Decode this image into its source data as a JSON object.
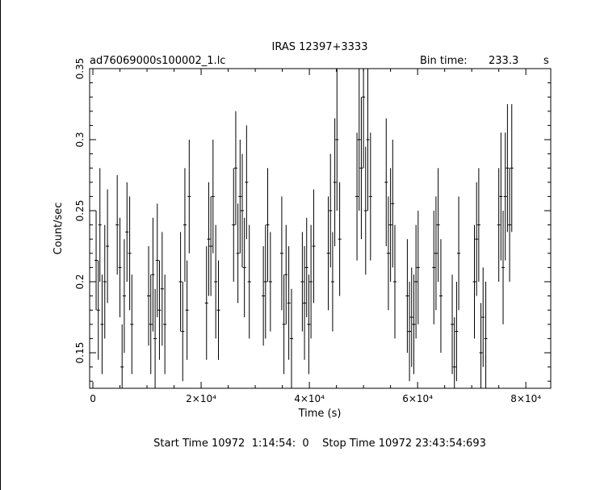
{
  "chart_data": {
    "type": "scatter",
    "style": "error-bars",
    "title": "IRAS 12397+3333",
    "file_label": "ad76069000s100002_1.lc",
    "bin_time_label": "Bin time:",
    "bin_time_value": "233.3",
    "bin_time_unit": "s",
    "xlabel": "Time (s)",
    "ylabel": "Count/sec",
    "xlim": [
      -600,
      84600
    ],
    "ylim": [
      0.125,
      0.35
    ],
    "x_ticks": [
      {
        "value": 0,
        "label": "0"
      },
      {
        "value": 20000,
        "label": "2×10⁴"
      },
      {
        "value": 40000,
        "label": "4×10⁴"
      },
      {
        "value": 60000,
        "label": "6×10⁴"
      },
      {
        "value": 80000,
        "label": "8×10⁴"
      }
    ],
    "y_ticks": [
      {
        "value": 0.15,
        "label": "0.15"
      },
      {
        "value": 0.2,
        "label": "0.2"
      },
      {
        "value": 0.25,
        "label": "0.25"
      },
      {
        "value": 0.3,
        "label": "0.3"
      },
      {
        "value": 0.35,
        "label": "0.35"
      }
    ],
    "grid": false,
    "series": [
      {
        "points": [
          [
            600,
            0.215,
            0.035
          ],
          [
            1000,
            0.18,
            0.035
          ],
          [
            1300,
            0.24,
            0.04
          ],
          [
            1700,
            0.17,
            0.035
          ],
          [
            2200,
            0.2,
            0.04
          ],
          [
            2700,
            0.225,
            0.04
          ],
          [
            4500,
            0.24,
            0.035
          ],
          [
            5000,
            0.21,
            0.035
          ],
          [
            5400,
            0.14,
            0.03
          ],
          [
            5800,
            0.19,
            0.04
          ],
          [
            6300,
            0.235,
            0.035
          ],
          [
            6800,
            0.22,
            0.04
          ],
          [
            7200,
            0.17,
            0.035
          ],
          [
            10300,
            0.19,
            0.035
          ],
          [
            10700,
            0.17,
            0.035
          ],
          [
            11100,
            0.205,
            0.04
          ],
          [
            11500,
            0.16,
            0.035
          ],
          [
            11900,
            0.215,
            0.04
          ],
          [
            12300,
            0.18,
            0.035
          ],
          [
            12800,
            0.195,
            0.04
          ],
          [
            13300,
            0.17,
            0.035
          ],
          [
            16200,
            0.2,
            0.035
          ],
          [
            16600,
            0.165,
            0.035
          ],
          [
            17000,
            0.24,
            0.04
          ],
          [
            17400,
            0.18,
            0.035
          ],
          [
            17800,
            0.26,
            0.04
          ],
          [
            21000,
            0.185,
            0.04
          ],
          [
            21400,
            0.23,
            0.04
          ],
          [
            21800,
            0.225,
            0.035
          ],
          [
            22200,
            0.26,
            0.04
          ],
          [
            22700,
            0.2,
            0.04
          ],
          [
            23200,
            0.18,
            0.035
          ],
          [
            26000,
            0.24,
            0.04
          ],
          [
            26400,
            0.28,
            0.04
          ],
          [
            26800,
            0.22,
            0.035
          ],
          [
            27200,
            0.26,
            0.04
          ],
          [
            27600,
            0.25,
            0.04
          ],
          [
            28000,
            0.21,
            0.035
          ],
          [
            28400,
            0.27,
            0.04
          ],
          [
            28900,
            0.2,
            0.04
          ],
          [
            31500,
            0.19,
            0.035
          ],
          [
            31900,
            0.2,
            0.04
          ],
          [
            32300,
            0.24,
            0.04
          ],
          [
            32800,
            0.2,
            0.035
          ],
          [
            34900,
            0.22,
            0.04
          ],
          [
            35300,
            0.17,
            0.035
          ],
          [
            35700,
            0.205,
            0.035
          ],
          [
            36200,
            0.185,
            0.04
          ],
          [
            36700,
            0.16,
            0.035
          ],
          [
            38700,
            0.2,
            0.035
          ],
          [
            39100,
            0.185,
            0.04
          ],
          [
            39500,
            0.21,
            0.035
          ],
          [
            39900,
            0.17,
            0.035
          ],
          [
            40300,
            0.2,
            0.04
          ],
          [
            40800,
            0.225,
            0.04
          ],
          [
            43500,
            0.22,
            0.04
          ],
          [
            43900,
            0.25,
            0.04
          ],
          [
            44300,
            0.2,
            0.035
          ],
          [
            44700,
            0.27,
            0.045
          ],
          [
            45100,
            0.3,
            0.05
          ],
          [
            45600,
            0.23,
            0.04
          ],
          [
            48800,
            0.26,
            0.045
          ],
          [
            49200,
            0.3,
            0.05
          ],
          [
            49600,
            0.28,
            0.05
          ],
          [
            50000,
            0.33,
            0.05
          ],
          [
            50400,
            0.25,
            0.045
          ],
          [
            50800,
            0.3,
            0.05
          ],
          [
            51300,
            0.26,
            0.045
          ],
          [
            54200,
            0.27,
            0.045
          ],
          [
            54600,
            0.22,
            0.04
          ],
          [
            55000,
            0.24,
            0.04
          ],
          [
            55400,
            0.255,
            0.045
          ],
          [
            55800,
            0.2,
            0.04
          ],
          [
            58100,
            0.19,
            0.04
          ],
          [
            58500,
            0.165,
            0.035
          ],
          [
            58900,
            0.175,
            0.035
          ],
          [
            59300,
            0.17,
            0.035
          ],
          [
            59700,
            0.2,
            0.04
          ],
          [
            60100,
            0.21,
            0.04
          ],
          [
            63000,
            0.21,
            0.04
          ],
          [
            63400,
            0.22,
            0.04
          ],
          [
            63800,
            0.24,
            0.04
          ],
          [
            64300,
            0.19,
            0.04
          ],
          [
            66400,
            0.17,
            0.035
          ],
          [
            66800,
            0.14,
            0.035
          ],
          [
            67200,
            0.165,
            0.035
          ],
          [
            67600,
            0.22,
            0.04
          ],
          [
            70500,
            0.2,
            0.04
          ],
          [
            70900,
            0.23,
            0.04
          ],
          [
            71300,
            0.24,
            0.04
          ],
          [
            71700,
            0.15,
            0.035
          ],
          [
            72100,
            0.175,
            0.035
          ],
          [
            72600,
            0.16,
            0.04
          ],
          [
            75000,
            0.24,
            0.04
          ],
          [
            75400,
            0.26,
            0.045
          ],
          [
            75800,
            0.21,
            0.04
          ],
          [
            76200,
            0.26,
            0.045
          ],
          [
            76600,
            0.28,
            0.045
          ],
          [
            77000,
            0.24,
            0.04
          ],
          [
            77400,
            0.28,
            0.045
          ]
        ]
      }
    ]
  },
  "footer": {
    "text": "Start Time 10972  1:14:54:  0    Stop Time 10972 23:43:54:693"
  }
}
